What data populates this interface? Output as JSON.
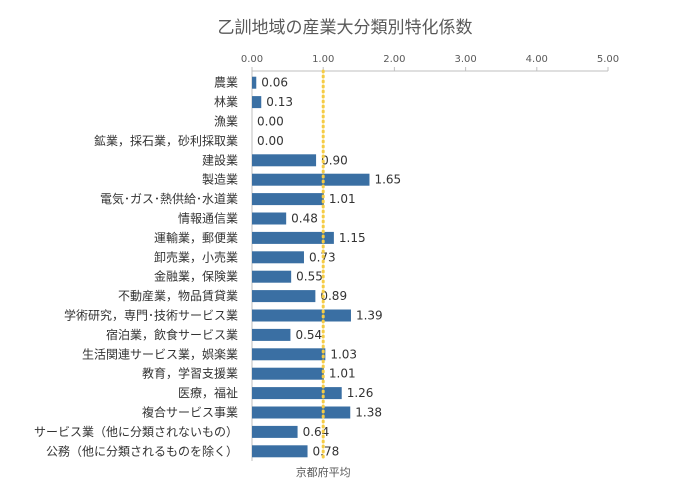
{
  "chart_data": {
    "type": "bar",
    "orientation": "horizontal",
    "title": "乙訓地域の産業大分類別特化係数",
    "xlim": [
      0,
      5
    ],
    "x_ticks": [
      "0.00",
      "1.00",
      "2.00",
      "3.00",
      "4.00",
      "5.00"
    ],
    "x_axis_position": "top",
    "grid": false,
    "bar_color": "#3a6fa3",
    "categories": [
      "農業",
      "林業",
      "漁業",
      "鉱業，採石業，砂利採取業",
      "建設業",
      "製造業",
      "電気･ガス･熱供給･水道業",
      "情報通信業",
      "運輸業，郵便業",
      "卸売業，小売業",
      "金融業，保険業",
      "不動産業，物品賃貸業",
      "学術研究，専門･技術サービス業",
      "宿泊業，飲食サービス業",
      "生活関連サービス業，娯楽業",
      "教育，学習支援業",
      "医療，福祉",
      "複合サービス事業",
      "サービス業（他に分類されないもの）",
      "公務（他に分類されるものを除く）"
    ],
    "values": [
      0.06,
      0.13,
      0.0,
      0.0,
      0.9,
      1.65,
      1.01,
      0.48,
      1.15,
      0.73,
      0.55,
      0.89,
      1.39,
      0.54,
      1.03,
      1.01,
      1.26,
      1.38,
      0.64,
      0.78
    ],
    "value_labels": [
      "0.06",
      "0.13",
      "0.00",
      "0.00",
      "0.90",
      "1.65",
      "1.01",
      "0.48",
      "1.15",
      "0.73",
      "0.55",
      "0.89",
      "1.39",
      "0.54",
      "1.03",
      "1.01",
      "1.26",
      "1.38",
      "0.64",
      "0.78"
    ],
    "reference_line": {
      "value": 1.0,
      "label": "京都府平均",
      "color": "#f5cc45",
      "style": "dotted"
    }
  }
}
